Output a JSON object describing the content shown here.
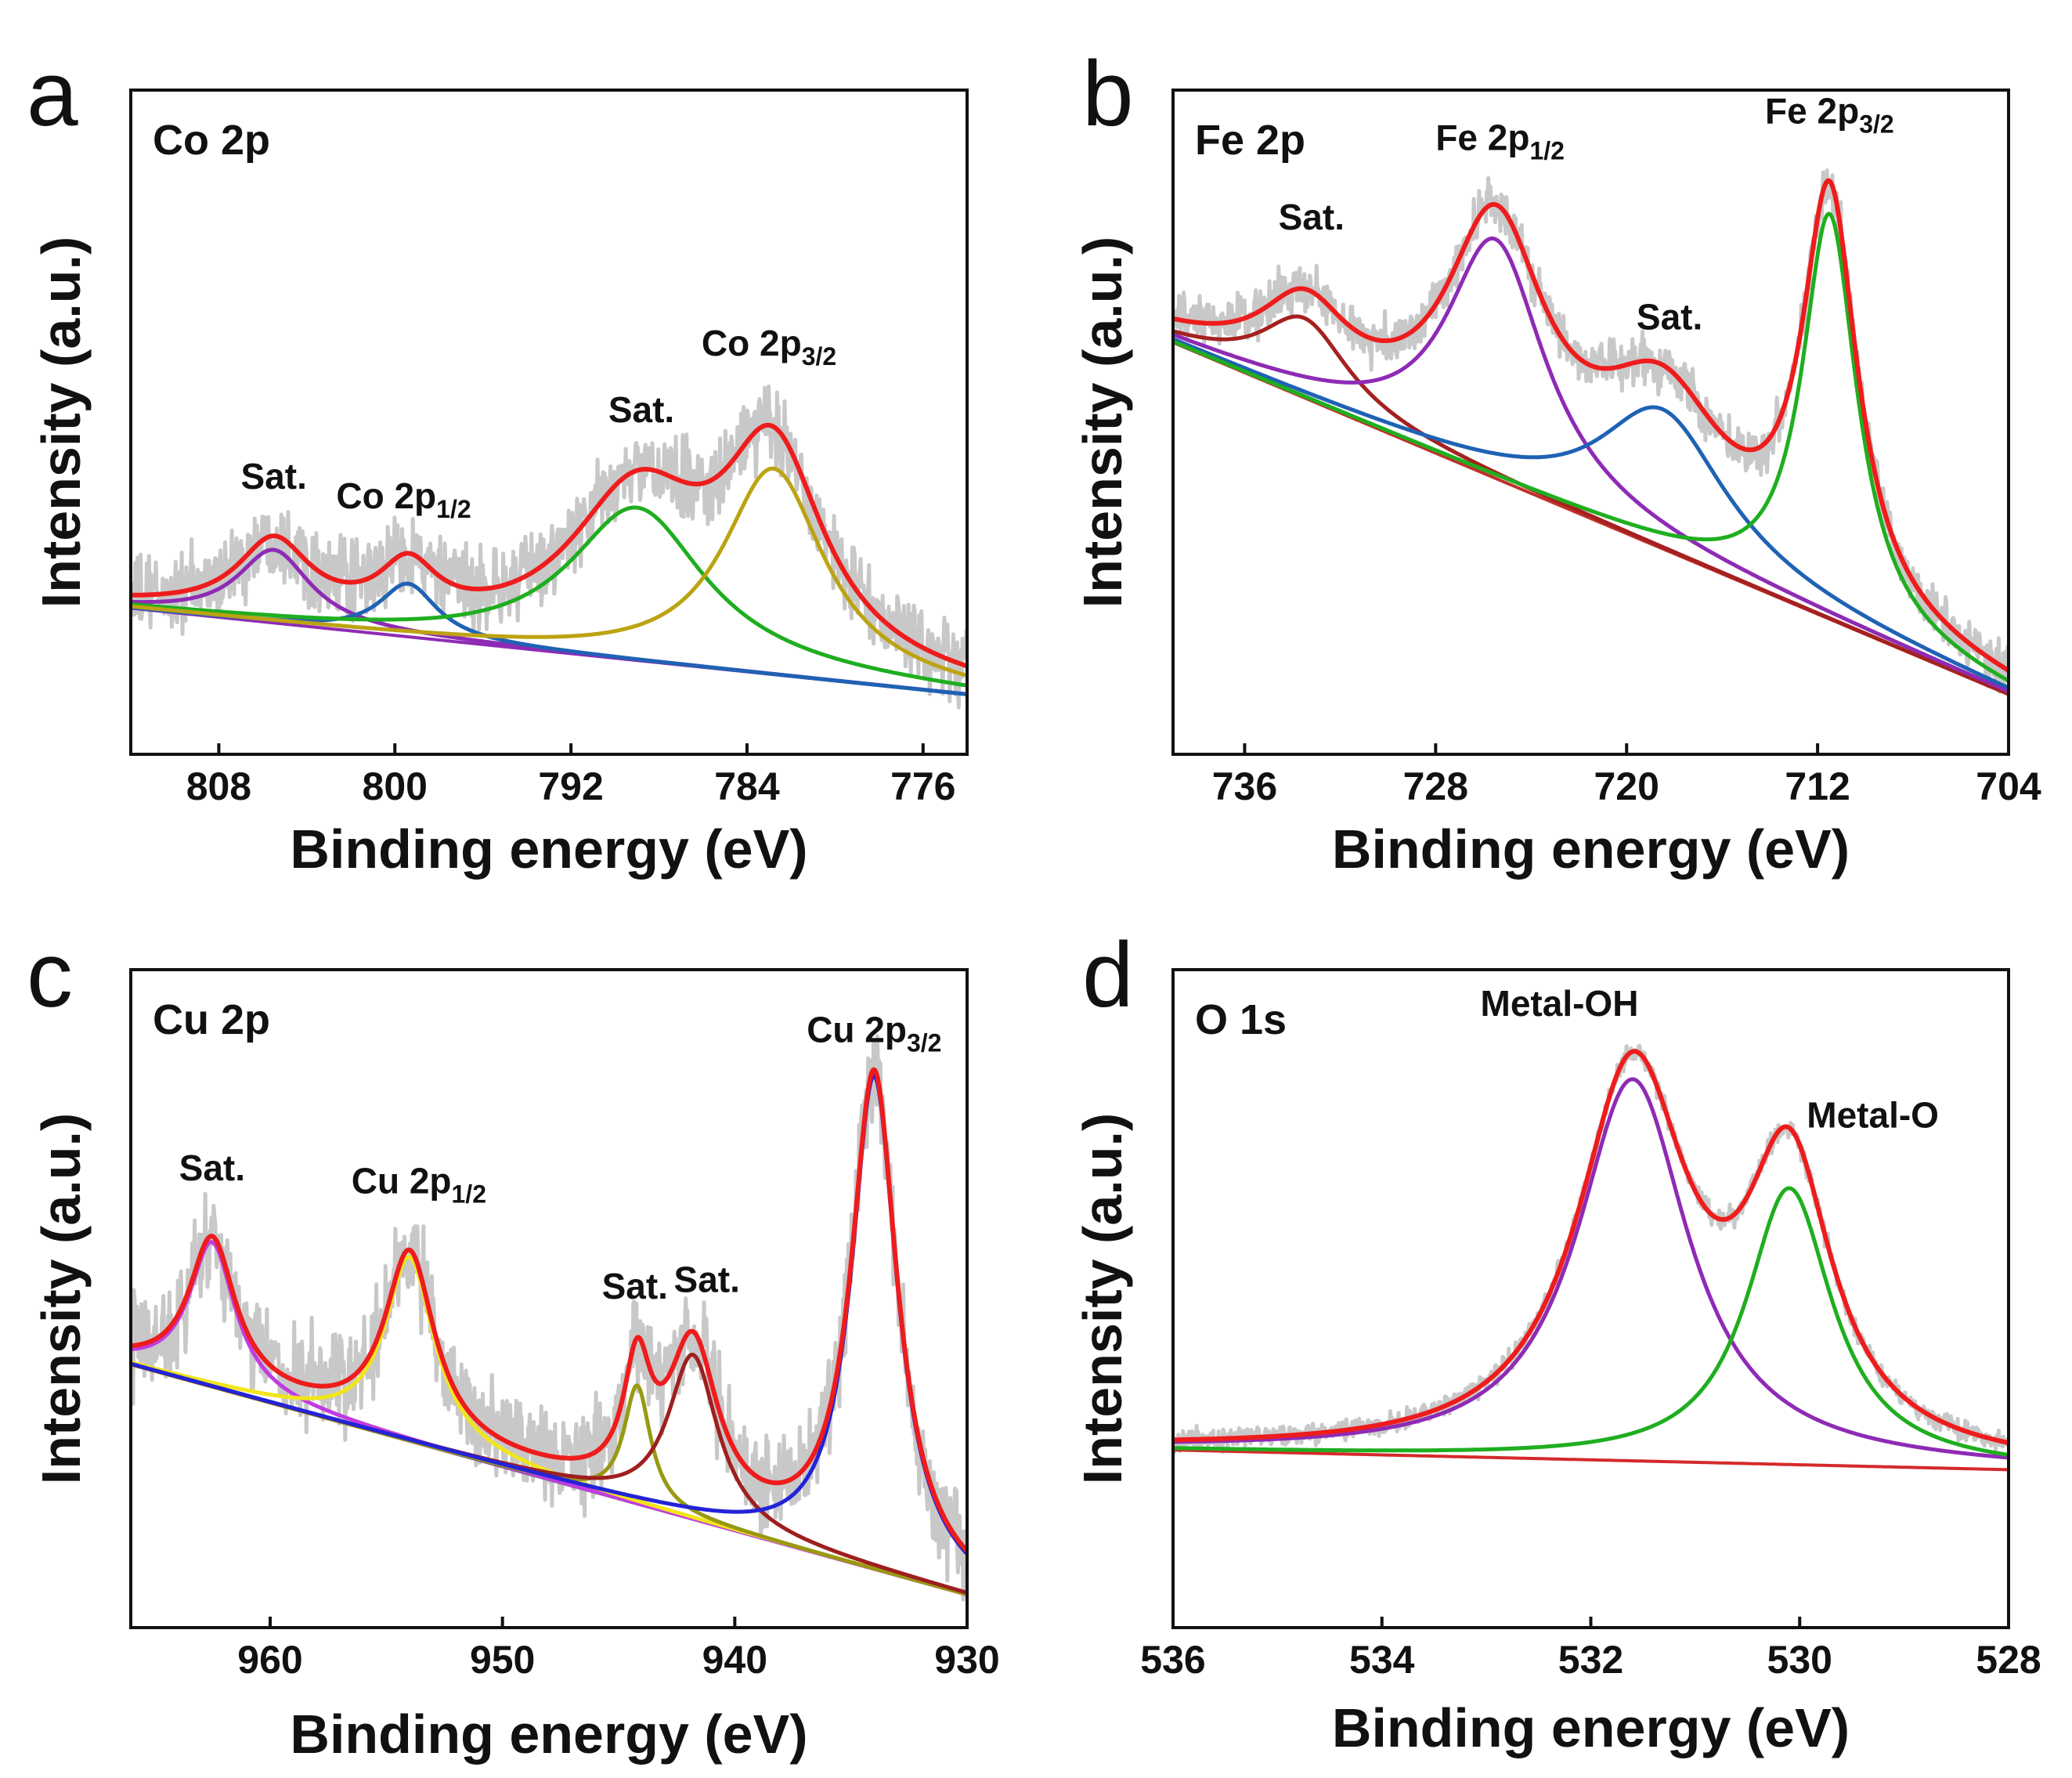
{
  "chart_data": [
    {
      "panel": "a",
      "type": "line",
      "title": "Co 2p",
      "xlabel": "Binding energy (eV)",
      "ylabel": "Intensity (a.u.)",
      "xlim": [
        812,
        774
      ],
      "ylim": [
        0,
        1
      ],
      "xticks": [
        808,
        800,
        792,
        784,
        776
      ],
      "grid": false,
      "raw_color": "#c8c8c8",
      "background": {
        "color": "#8e2bb5",
        "y_start": 0.22,
        "y_end": 0.09
      },
      "series": [
        {
          "name": "Sat.",
          "color": "#8e2bb5",
          "peaks": [
            {
              "center": 805.5,
              "height": 0.11,
              "fwhm": 4.0
            }
          ]
        },
        {
          "name": "Co 2p1/2",
          "color": "#1f62b4",
          "peaks": [
            {
              "center": 799.4,
              "height": 0.08,
              "fwhm": 3.2
            }
          ]
        },
        {
          "name": "Sat.",
          "color": "#1fae1f",
          "peaks": [
            {
              "center": 789.0,
              "height": 0.23,
              "fwhm": 7.5
            }
          ]
        },
        {
          "name": "Co 2p3/2",
          "color": "#bca312",
          "peaks": [
            {
              "center": 782.8,
              "height": 0.31,
              "fwhm": 5.6
            }
          ]
        },
        {
          "name": "Envelope",
          "color": "#ee1c1c",
          "envelope": true
        }
      ],
      "annotations": [
        {
          "text": "Sat.",
          "x": 805.5,
          "y": 0.4
        },
        {
          "text": "Co 2p",
          "sub": "1/2",
          "x": 799.6,
          "y": 0.37
        },
        {
          "text": "Sat.",
          "x": 788.8,
          "y": 0.5
        },
        {
          "text": "Co 2p",
          "sub": "3/2",
          "x": 783.0,
          "y": 0.6
        }
      ]
    },
    {
      "panel": "b",
      "type": "line",
      "title": "Fe 2p",
      "xlabel": "Binding energy (eV)",
      "ylabel": "Intensity (a.u.)",
      "xlim": [
        739,
        704
      ],
      "ylim": [
        0,
        1
      ],
      "xticks": [
        736,
        728,
        720,
        712,
        704
      ],
      "grid": false,
      "raw_color": "#c8c8c8",
      "background": {
        "color": "#c0302a",
        "y_start": 0.62,
        "y_end": 0.09
      },
      "series": [
        {
          "name": "Sat.",
          "color": "#a5211f",
          "peaks": [
            {
              "center": 733.5,
              "height": 0.12,
              "fwhm": 4.5
            }
          ]
        },
        {
          "name": "Fe 2p1/2",
          "color": "#8e2bb5",
          "peaks": [
            {
              "center": 725.5,
              "height": 0.36,
              "fwhm": 5.0
            }
          ]
        },
        {
          "name": "Sat.",
          "color": "#1f62b4",
          "peaks": [
            {
              "center": 718.5,
              "height": 0.21,
              "fwhm": 6.5
            }
          ]
        },
        {
          "name": "Fe 2p3/2",
          "color": "#1fae1f",
          "peaks": [
            {
              "center": 711.5,
              "height": 0.61,
              "fwhm": 2.8
            }
          ]
        },
        {
          "name": "Envelope",
          "color": "#ee1c1c",
          "envelope": true
        }
      ],
      "annotations": [
        {
          "text": "Sat.",
          "x": 733.2,
          "y": 0.79
        },
        {
          "text": "Fe 2p",
          "sub": "1/2",
          "x": 725.3,
          "y": 0.91
        },
        {
          "text": "Sat.",
          "x": 718.2,
          "y": 0.64
        },
        {
          "text": "Fe 2p",
          "sub": "3/2",
          "x": 711.5,
          "y": 0.95
        }
      ]
    },
    {
      "panel": "c",
      "type": "line",
      "title": "Cu 2p",
      "xlabel": "Binding energy (eV)",
      "ylabel": "Intensity (a.u.)",
      "xlim": [
        966,
        930
      ],
      "ylim": [
        0,
        1
      ],
      "xticks": [
        960,
        950,
        940,
        930
      ],
      "grid": false,
      "raw_color": "#c8c8c8",
      "background": {
        "color": "#7a5a8c",
        "y_start": 0.4,
        "y_end": 0.05
      },
      "series": [
        {
          "name": "Sat.",
          "color": "#c23be0",
          "peaks": [
            {
              "center": 962.5,
              "height": 0.22,
              "fwhm": 2.4
            }
          ]
        },
        {
          "name": "Cu 2p1/2",
          "color": "#f2e51a",
          "peaks": [
            {
              "center": 954.0,
              "height": 0.28,
              "fwhm": 2.6
            }
          ]
        },
        {
          "name": "Sat.",
          "color": "#999912",
          "peaks": [
            {
              "center": 944.2,
              "height": 0.18,
              "fwhm": 1.4
            }
          ]
        },
        {
          "name": "Sat.",
          "color": "#9e1f1f",
          "peaks": [
            {
              "center": 941.8,
              "height": 0.25,
              "fwhm": 2.6
            }
          ]
        },
        {
          "name": "Cu 2p3/2",
          "color": "#2323d8",
          "peaks": [
            {
              "center": 934.0,
              "height": 0.75,
              "fwhm": 2.4
            }
          ]
        },
        {
          "name": "Envelope",
          "color": "#ee1c1c",
          "envelope": true
        }
      ],
      "annotations": [
        {
          "text": "Sat.",
          "x": 962.5,
          "y": 0.68
        },
        {
          "text": "Cu 2p",
          "sub": "1/2",
          "x": 953.6,
          "y": 0.66
        },
        {
          "text": "Sat.",
          "x": 944.3,
          "y": 0.5
        },
        {
          "text": "Sat.",
          "x": 941.2,
          "y": 0.51
        },
        {
          "text": "Cu 2p",
          "sub": "3/2",
          "x": 934.0,
          "y": 0.89
        }
      ]
    },
    {
      "panel": "d",
      "type": "line",
      "title": "O 1s",
      "xlabel": "Binding energy (eV)",
      "ylabel": "Intensity (a.u.)",
      "xlim": [
        536,
        528
      ],
      "ylim": [
        0,
        1
      ],
      "xticks": [
        536,
        534,
        532,
        530,
        528
      ],
      "grid": false,
      "raw_color": "#c8c8c8",
      "background": {
        "color": "#d42a2a",
        "y_start": 0.27,
        "y_end": 0.24
      },
      "series": [
        {
          "name": "Metal-OH",
          "color": "#8e2bb5",
          "peaks": [
            {
              "center": 531.6,
              "height": 0.58,
              "fwhm": 1.3
            }
          ]
        },
        {
          "name": "Metal-O",
          "color": "#1fae1f",
          "peaks": [
            {
              "center": 530.1,
              "height": 0.42,
              "fwhm": 1.0
            }
          ]
        },
        {
          "name": "Envelope",
          "color": "#ee1c1c",
          "envelope": true
        }
      ],
      "annotations": [
        {
          "text": "Metal-OH",
          "x": 532.3,
          "y": 0.93
        },
        {
          "text": "Metal-O",
          "x": 529.3,
          "y": 0.76
        }
      ]
    }
  ]
}
